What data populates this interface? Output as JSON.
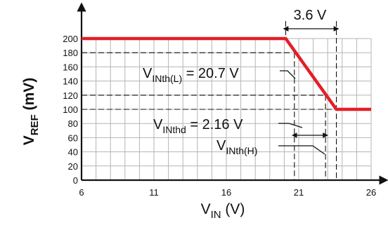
{
  "chart_data": {
    "type": "line",
    "title": "",
    "xlabel": {
      "main": "V",
      "sub": "IN",
      "unit": " (V)"
    },
    "ylabel": {
      "main": "V",
      "sub": "REF",
      "unit": " (mV)"
    },
    "xlim": [
      6,
      26
    ],
    "ylim": [
      0,
      200
    ],
    "x_ticks": [
      6,
      11,
      16,
      21,
      26
    ],
    "y_ticks": [
      0,
      20,
      40,
      60,
      80,
      100,
      120,
      140,
      160,
      180,
      200
    ],
    "grid": true,
    "series": [
      {
        "x": [
          6,
          20.1,
          23.6,
          26
        ],
        "y": [
          200,
          200,
          100,
          100
        ],
        "color": "#e41e26"
      }
    ],
    "reference_lines": {
      "x": [
        20.7,
        22.85,
        23.6
      ],
      "y": [
        180,
        120,
        100
      ]
    },
    "annotations": {
      "width_label": "3.6 V",
      "vinth_l": {
        "main": "V",
        "sub": "INth(L)",
        "value": " = 20.7 V"
      },
      "vinthd": {
        "main": "V",
        "sub": "INthd",
        "value": " = 2.16 V"
      },
      "vinth_h": {
        "main": "V",
        "sub": "INth(H)",
        "value": ""
      }
    }
  }
}
